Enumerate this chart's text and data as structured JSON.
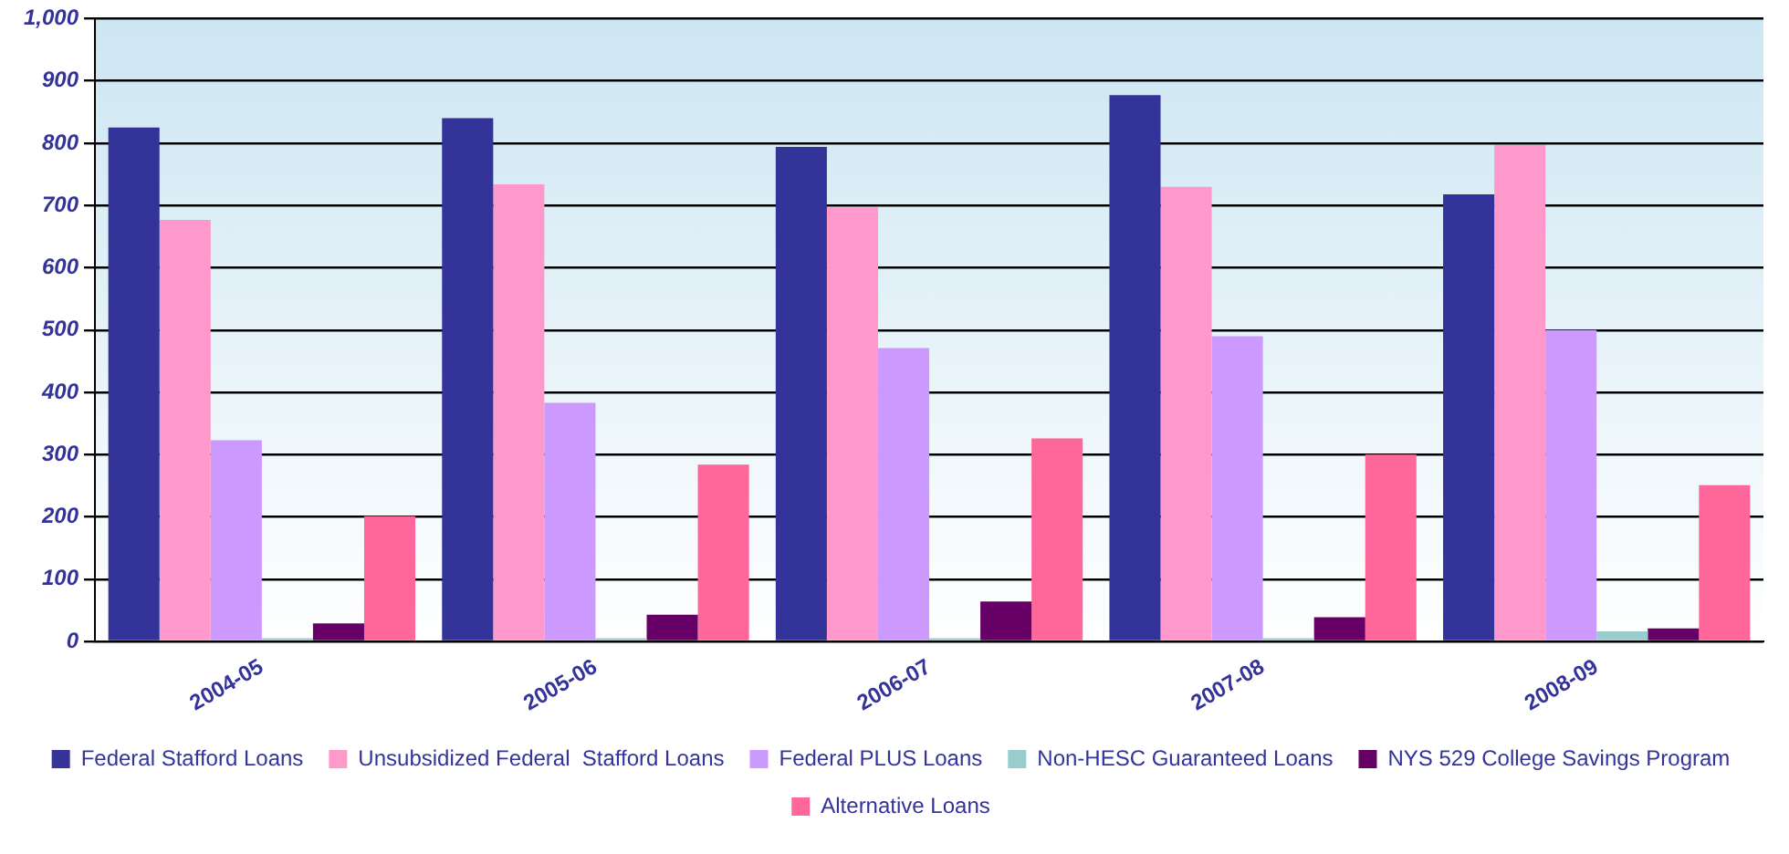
{
  "chart_data": {
    "type": "bar",
    "categories": [
      "2004-05",
      "2005-06",
      "2006-07",
      "2007-08",
      "2008-09"
    ],
    "series": [
      {
        "name": "Federal Stafford Loans",
        "color": "#333399",
        "values": [
          825,
          840,
          794,
          877,
          718
        ]
      },
      {
        "name": "Unsubsidized Federal  Stafford Loans",
        "color": "#ff99cc",
        "values": [
          677,
          734,
          697,
          730,
          797
        ]
      },
      {
        "name": "Federal PLUS Loans",
        "color": "#cc99ff",
        "values": [
          323,
          383,
          471,
          490,
          500
        ]
      },
      {
        "name": "Non-HESC Guaranteed Loans",
        "color": "#99cccc",
        "values": [
          5,
          5,
          5,
          5,
          16
        ]
      },
      {
        "name": "NYS 529 College Savings Program",
        "color": "#660066",
        "values": [
          29,
          43,
          64,
          39,
          21
        ]
      },
      {
        "name": "Alternative Loans",
        "color": "#ff6699",
        "values": [
          201,
          284,
          326,
          300,
          251
        ]
      }
    ],
    "ylim": [
      0,
      1000
    ],
    "yticks": [
      0,
      100,
      200,
      300,
      400,
      500,
      600,
      700,
      800,
      900,
      {
        "value": 1000,
        "label": "1,000"
      }
    ],
    "grid": "y",
    "legend": "bottom"
  }
}
